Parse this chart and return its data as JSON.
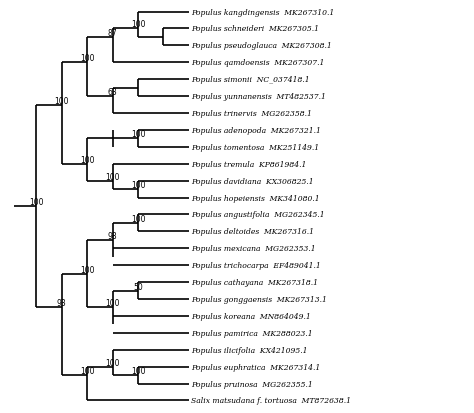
{
  "taxa": [
    "Populus kangdingensis  MK267310.1",
    "Populus schneideri  MK267305.1",
    "Populus pseudoglauca  MK267308.1",
    "Populus qamdoensis  MK267307.1",
    "Populus simonii  NC_037418.1",
    "Populus yunnanensis  MT482537.1",
    "Populus trinervis  MG262358.1",
    "Populus adenopoda  MK267321.1",
    "Populus tomentosa  MK251149.1",
    "Populus tremula  KP861984.1",
    "Populus davidiana  KX306825.1",
    "Populus hopeiensis  MK341080.1",
    "Populus angustifolia  MG262345.1",
    "Populus deltoides  MK267316.1",
    "Populus mexicana  MG262353.1",
    "Populus trichocarpa  EF489041.1",
    "Populus cathayana  MK267318.1",
    "Populus gonggaensis  MK267313.1",
    "Populus koreana  MN864049.1",
    "Populus pamirica  MK288023.1",
    "Populus ilicifolia  KX421095.1",
    "Populus euphratica  MK267314.1",
    "Populus pruinosa  MG262355.1",
    "Salix matsudana f. tortuosa  MT872638.1"
  ],
  "bg_color": "#ffffff",
  "line_color": "#000000",
  "text_color": "#000000",
  "bootstrap_color": "#000000",
  "lw": 1.2,
  "fontsize": 5.5,
  "bootstrap_fontsize": 5.5,
  "fig_width": 4.74,
  "fig_height": 4.14,
  "dpi": 100
}
